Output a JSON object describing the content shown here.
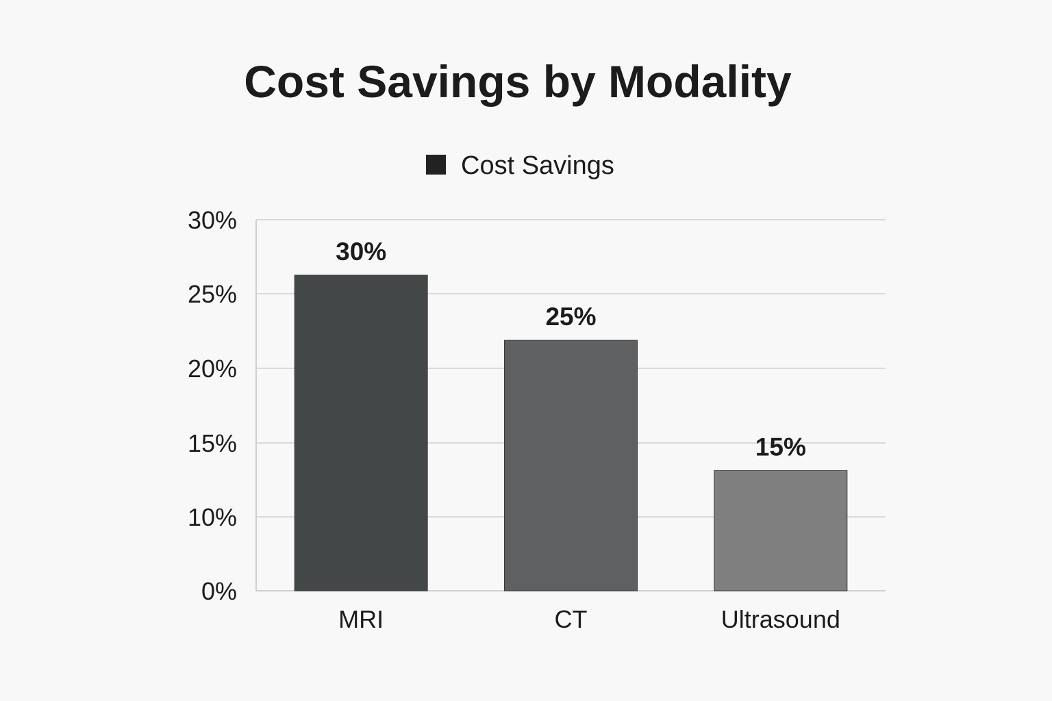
{
  "chart_data": {
    "type": "bar",
    "title": "Cost Savings by Modality",
    "xlabel": "",
    "ylabel": "",
    "categories": [
      "MRI",
      "CT",
      "Ultrasound"
    ],
    "series": [
      {
        "name": "Cost Savings",
        "values": [
          30,
          25,
          15
        ],
        "value_labels": [
          "30%",
          "25%",
          "15%"
        ]
      }
    ],
    "bar_colors": [
      "#444748",
      "#5f6061",
      "#7f7f7f"
    ],
    "legend_swatch_color": "#222222",
    "y_ticks": [
      {
        "value": 0,
        "label": "0%"
      },
      {
        "value": 10,
        "label": "10%"
      },
      {
        "value": 15,
        "label": "15%"
      },
      {
        "value": 20,
        "label": "20%"
      },
      {
        "value": 25,
        "label": "25%"
      },
      {
        "value": 30,
        "label": "30%"
      }
    ],
    "grid": true,
    "legend_position": "top"
  }
}
